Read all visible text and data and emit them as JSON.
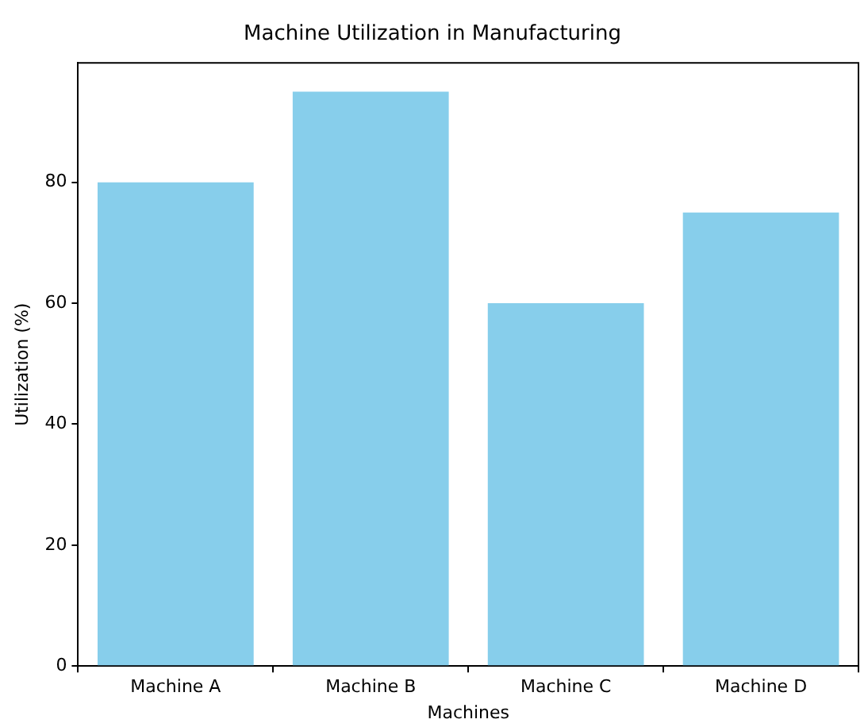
{
  "chart_data": {
    "type": "bar",
    "title": "Machine Utilization in Manufacturing",
    "xlabel": "Machines",
    "ylabel": "Utilization (%)",
    "categories": [
      "Machine A",
      "Machine B",
      "Machine C",
      "Machine D"
    ],
    "values": [
      80,
      95,
      60,
      75
    ],
    "color": "#87ceeb",
    "ylim": [
      0,
      99.75
    ],
    "yticks": [
      0,
      20,
      40,
      60,
      80
    ]
  }
}
